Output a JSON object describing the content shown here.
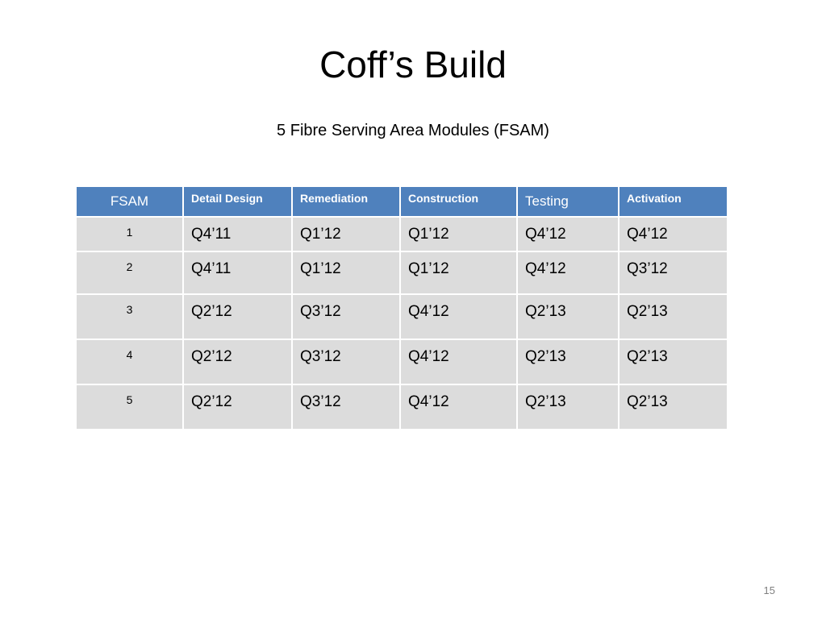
{
  "slide": {
    "title": "Coff’s Build",
    "subtitle": "5 Fibre Serving Area Modules (FSAM)",
    "page_number": "15"
  },
  "table": {
    "headers": [
      "FSAM",
      "Detail Design",
      "Remediation",
      "Construction",
      "Testing",
      "Activation"
    ],
    "rows": [
      [
        "1",
        "Q4’11",
        "Q1’12",
        "Q1’12",
        "Q4’12",
        "Q4’12"
      ],
      [
        "2",
        "Q4’11",
        "Q1’12",
        "Q1’12",
        "Q4’12",
        "Q3’12"
      ],
      [
        "3",
        "Q2’12",
        "Q3’12",
        "Q4’12",
        "Q2’13",
        "Q2’13"
      ],
      [
        "4",
        "Q2’12",
        "Q3’12",
        "Q4’12",
        "Q2’13",
        "Q2’13"
      ],
      [
        "5",
        "Q2’12",
        "Q3’12",
        "Q4’12",
        "Q2’13",
        "Q2’13"
      ]
    ]
  },
  "colors": {
    "header_bg": "#4f81bd",
    "cell_bg": "#dcdcdc"
  }
}
